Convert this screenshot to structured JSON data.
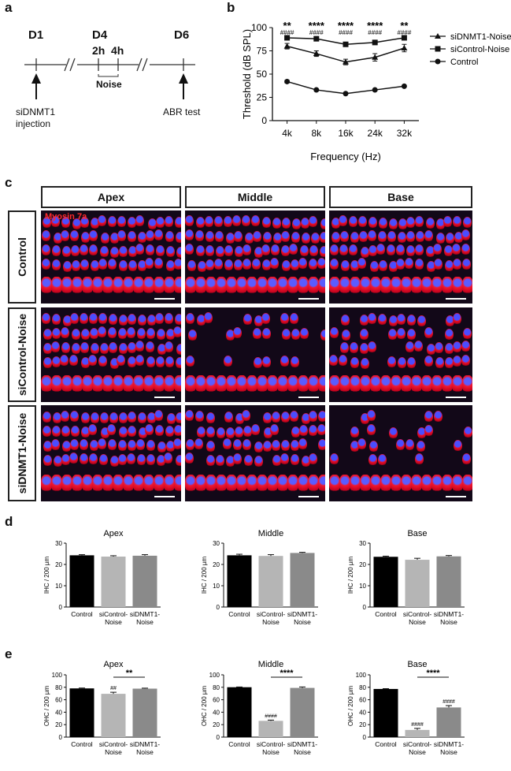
{
  "panels": {
    "a": "a",
    "b": "b",
    "c": "c",
    "d": "d",
    "e": "e"
  },
  "timeline": {
    "days": [
      "D1",
      "D4",
      "D6"
    ],
    "hours": [
      "2h",
      "4h"
    ],
    "noise_label": "Noise",
    "injection_label_1": "siDNMT1",
    "injection_label_2": "injection",
    "test_label": "ABR test"
  },
  "abr_chart": {
    "type": "line",
    "xlabel": "Frequency (Hz)",
    "ylabel": "Threshold (dB SPL)",
    "categories": [
      "4k",
      "8k",
      "16k",
      "24k",
      "32k"
    ],
    "ylim": [
      0,
      100
    ],
    "yticks": [
      0,
      25,
      50,
      75,
      100
    ],
    "legend_position": "right",
    "series": [
      {
        "name": "siDNMT1-Noise",
        "marker": "triangle",
        "values": [
          80,
          72,
          63,
          68,
          78
        ],
        "err": [
          3,
          3,
          3,
          4,
          4
        ]
      },
      {
        "name": "siControl-Noise",
        "marker": "square",
        "values": [
          89,
          88,
          82,
          84,
          89
        ],
        "err": [
          1,
          1,
          1,
          1,
          1
        ]
      },
      {
        "name": "Control",
        "marker": "circle",
        "values": [
          42,
          33,
          29,
          33,
          37
        ],
        "err": [
          1.5,
          1,
          1,
          1,
          1
        ]
      }
    ],
    "annot_top": [
      "**",
      "****",
      "****",
      "****",
      "**"
    ],
    "annot_bottom": [
      "####",
      "####",
      "####",
      "####",
      "####"
    ]
  },
  "micrographs": {
    "columns": [
      "Apex",
      "Middle",
      "Base"
    ],
    "rows": [
      "Control",
      "siControl-Noise",
      "siDNMT1-Noise"
    ],
    "stain_label": "Myosin 7a"
  },
  "chart_data": [
    {
      "type": "bar",
      "title": "Apex",
      "ylabel": "IHC / 200 µm",
      "categories": [
        "Control",
        "siControl-\nNoise",
        "siDNMT1-\nNoise"
      ],
      "values": [
        24.3,
        23.7,
        24.1
      ],
      "err": [
        0.3,
        0.4,
        0.5
      ],
      "ylim": [
        0,
        30
      ],
      "yticks": [
        0,
        10,
        20,
        30
      ],
      "colors": [
        "#000000",
        "#b5b5b5",
        "#8a8a8a"
      ],
      "sig_line": null,
      "marks": [
        "",
        "",
        ""
      ]
    },
    {
      "type": "bar",
      "title": "Middle",
      "ylabel": "IHC / 200 µm",
      "categories": [
        "Control",
        "siControl-\nNoise",
        "siDNMT1-\nNoise"
      ],
      "values": [
        24.3,
        24.0,
        25.4
      ],
      "err": [
        0.5,
        0.6,
        0.3
      ],
      "ylim": [
        0,
        30
      ],
      "yticks": [
        0,
        10,
        20,
        30
      ],
      "colors": [
        "#000000",
        "#b5b5b5",
        "#8a8a8a"
      ],
      "sig_line": null,
      "marks": [
        "",
        "",
        ""
      ]
    },
    {
      "type": "bar",
      "title": "Base",
      "ylabel": "IHC / 200 µm",
      "categories": [
        "Control",
        "siControl-\nNoise",
        "siDNMT1-\nNoise"
      ],
      "values": [
        23.6,
        22.2,
        23.8
      ],
      "err": [
        0.3,
        0.7,
        0.4
      ],
      "ylim": [
        0,
        30
      ],
      "yticks": [
        0,
        10,
        20,
        30
      ],
      "colors": [
        "#000000",
        "#b5b5b5",
        "#8a8a8a"
      ],
      "sig_line": null,
      "marks": [
        "",
        "",
        ""
      ]
    },
    {
      "type": "bar",
      "title": "Apex",
      "ylabel": "OHC / 200 µm",
      "categories": [
        "Control",
        "siControl-\nNoise",
        "siDNMT1-\nNoise"
      ],
      "values": [
        78.2,
        69.5,
        77.8
      ],
      "err": [
        0.6,
        2.5,
        0.8
      ],
      "ylim": [
        0,
        100
      ],
      "yticks": [
        0,
        20,
        40,
        60,
        80,
        100
      ],
      "colors": [
        "#000000",
        "#b5b5b5",
        "#8a8a8a"
      ],
      "sig_line": "**",
      "marks": [
        "",
        "##",
        ""
      ]
    },
    {
      "type": "bar",
      "title": "Middle",
      "ylabel": "OHC / 200 µm",
      "categories": [
        "Control",
        "siControl-\nNoise",
        "siDNMT1-\nNoise"
      ],
      "values": [
        80.1,
        26.1,
        79.0
      ],
      "err": [
        0.4,
        1.2,
        1.5
      ],
      "ylim": [
        0,
        100
      ],
      "yticks": [
        0,
        20,
        40,
        60,
        80,
        100
      ],
      "colors": [
        "#000000",
        "#b5b5b5",
        "#8a8a8a"
      ],
      "sig_line": "****",
      "marks": [
        "",
        "####",
        ""
      ]
    },
    {
      "type": "bar",
      "title": "Base",
      "ylabel": "OHC / 200 µm",
      "categories": [
        "Control",
        "siControl-\nNoise",
        "siDNMT1-\nNoise"
      ],
      "values": [
        77.3,
        11.5,
        47.6
      ],
      "err": [
        0.5,
        2.5,
        3.0
      ],
      "ylim": [
        0,
        100
      ],
      "yticks": [
        0,
        20,
        40,
        60,
        80,
        100
      ],
      "colors": [
        "#000000",
        "#b5b5b5",
        "#8a8a8a"
      ],
      "sig_line": "****",
      "marks": [
        "",
        "####",
        "####"
      ]
    }
  ]
}
